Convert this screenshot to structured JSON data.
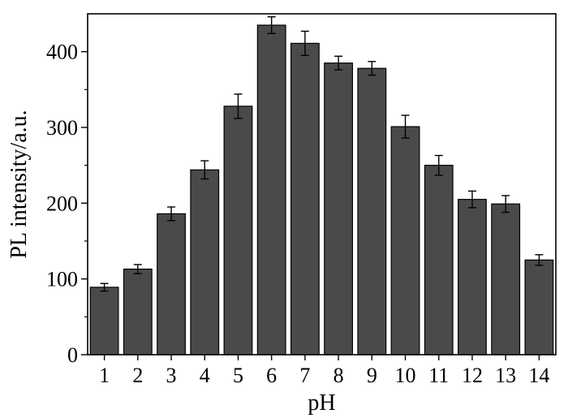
{
  "chart_data": {
    "type": "bar",
    "xlabel": "pH",
    "ylabel": "PL intensity/a.u.",
    "categories": [
      "1",
      "2",
      "3",
      "4",
      "5",
      "6",
      "7",
      "8",
      "9",
      "10",
      "11",
      "12",
      "13",
      "14"
    ],
    "values": [
      89,
      113,
      186,
      244,
      328,
      435,
      411,
      385,
      378,
      301,
      250,
      205,
      199,
      125
    ],
    "errors": [
      5,
      6,
      9,
      12,
      16,
      11,
      16,
      9,
      9,
      15,
      13,
      11,
      11,
      7
    ],
    "ylim": [
      0,
      450
    ],
    "yticks": [
      0,
      100,
      200,
      300,
      400
    ],
    "grid": false,
    "legend": "none",
    "colors": {
      "bar": "#4a4a4a",
      "bar_edge": "#000000",
      "axis": "#000000"
    }
  }
}
